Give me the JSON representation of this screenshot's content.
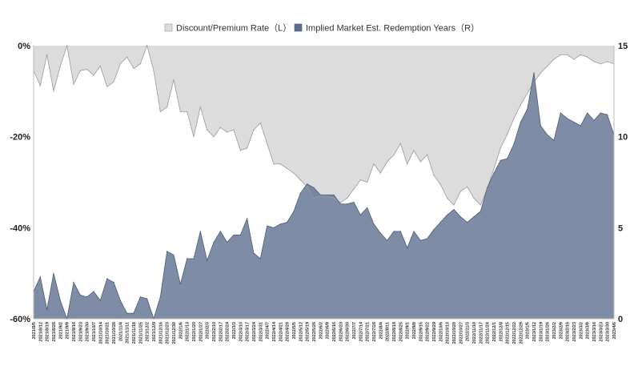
{
  "chart_data": {
    "type": "area",
    "title": "",
    "xlabel": "",
    "ylabel_left": "",
    "ylabel_right": "",
    "legend": {
      "placement": "top-center",
      "items": [
        {
          "label": "Discount/Premium Rate（L）",
          "color": "#dcdcdc",
          "axis": "left"
        },
        {
          "label": "Implied Market Est. Redemption Years（R）",
          "color": "#5e6f8e",
          "axis": "right"
        }
      ]
    },
    "y_left": {
      "ticks": [
        "0%",
        "-20%",
        "-40%",
        "-60%"
      ],
      "tick_values": [
        0,
        -20,
        -40,
        -60
      ],
      "lim": [
        -60,
        0
      ]
    },
    "y_right": {
      "ticks": [
        "15",
        "10",
        "5",
        "0"
      ],
      "tick_values": [
        15,
        10,
        5,
        0
      ],
      "lim": [
        0,
        15
      ]
    },
    "grid": false,
    "x_tick_labels": [
      "2021/8/5",
      "2021/8/12",
      "2021/8/19",
      "2021/8/26",
      "2021/9/2",
      "2021/9/9",
      "2021/9/16",
      "2021/9/23",
      "2021/9/30",
      "2021/10/7",
      "2021/10/14",
      "2021/10/21",
      "2021/10/28",
      "2021/11/4",
      "2021/11/11",
      "2021/11/18",
      "2021/11/25",
      "2021/12/2",
      "2021/12/9",
      "2021/12/16",
      "2021/12/23",
      "2021/12/30",
      "2022/1/6",
      "2022/1/13",
      "2022/1/20",
      "2022/1/27",
      "2022/2/3",
      "2022/2/10",
      "2022/2/17",
      "2022/2/24",
      "2022/3/3",
      "2022/3/10",
      "2022/3/17",
      "2022/3/24",
      "2022/3/31",
      "2022/4/7",
      "2022/4/14",
      "2022/4/21",
      "2022/4/28",
      "2022/5/5",
      "2022/5/12",
      "2022/5/19",
      "2022/5/26",
      "2022/6/2",
      "2022/6/9",
      "2022/6/16",
      "2022/6/23",
      "2022/6/30",
      "2022/7/7",
      "2022/7/14",
      "2022/7/21",
      "2022/7/28",
      "2022/8/4",
      "2022/8/11",
      "2022/8/18",
      "2022/8/25",
      "2022/9/1",
      "2022/9/8",
      "2022/9/15",
      "2022/9/22",
      "2022/9/29",
      "2022/10/6",
      "2022/10/13",
      "2022/10/20",
      "2022/10/27",
      "2022/11/3",
      "2022/11/10",
      "2022/11/17",
      "2022/11/24",
      "2022/12/1",
      "2022/12/8",
      "2022/12/15",
      "2022/12/22",
      "2022/12/29",
      "2023/1/5",
      "2023/1/12",
      "2023/1/19",
      "2023/1/26",
      "2023/2/2",
      "2023/2/9",
      "2023/2/16",
      "2023/2/23",
      "2023/3/2",
      "2023/3/9",
      "2023/3/16",
      "2023/3/23",
      "2023/3/30",
      "2023/4/6"
    ],
    "series": [
      {
        "name": "Discount/Premium Rate（L）",
        "axis": "left",
        "values": [
          -5.5,
          -8.8,
          -2,
          -10,
          -4.5,
          0,
          -8.5,
          -5.5,
          -5.2,
          -6.5,
          -4.5,
          -9,
          -8,
          -4,
          -2.5,
          -5,
          -4,
          0,
          -5.5,
          -14.5,
          -13.5,
          -7.5,
          -14.5,
          -14.5,
          -20,
          -13.5,
          -18.5,
          -20,
          -18,
          -19,
          -18.5,
          -23,
          -22.5,
          -18.5,
          -17,
          -21.5,
          -26,
          -26,
          -27,
          -28,
          -29.5,
          -31,
          -33.5,
          -33,
          -33,
          -33.5,
          -34.5,
          -33.5,
          -31.5,
          -29.5,
          -30,
          -26,
          -28,
          -25.5,
          -24,
          -21.5,
          -26,
          -23,
          -25.5,
          -24,
          -28.5,
          -30.5,
          -33.5,
          -35,
          -32,
          -31,
          -33.5,
          -35,
          -31.5,
          -27,
          -22.5,
          -19.5,
          -16,
          -13,
          -10.5,
          -8,
          -6,
          -4.5,
          -3,
          -2,
          -2,
          -3,
          -2,
          -2.5,
          -3.5,
          -4,
          -3.5,
          -4
        ]
      },
      {
        "name": "Implied Market Est. Redemption Years（R）",
        "axis": "right",
        "values": [
          1.5,
          2.3,
          0.5,
          2.5,
          1,
          0,
          2,
          1.3,
          1.2,
          1.5,
          1,
          2.2,
          2,
          1,
          0.3,
          0.3,
          1.2,
          1.1,
          0,
          1.2,
          3.7,
          3.5,
          1.9,
          3.3,
          3.3,
          4.8,
          3.2,
          4.2,
          4.8,
          4.2,
          4.6,
          4.6,
          5.5,
          3.6,
          3.3,
          5.1,
          5,
          5.2,
          5.3,
          5.9,
          6.9,
          7.4,
          7.2,
          6.8,
          6.8,
          6.8,
          6.3,
          6.3,
          6.4,
          5.7,
          6.1,
          5.2,
          4.7,
          4.3,
          4.8,
          4.8,
          3.9,
          4.8,
          4.3,
          4.4,
          4.9,
          5.3,
          5.7,
          6,
          5.6,
          5.3,
          5.6,
          5.9,
          7.2,
          8,
          8.7,
          8.8,
          9.6,
          10.8,
          11.5,
          13.5,
          10.6,
          10.1,
          9.8,
          11.3,
          11,
          10.8,
          10.6,
          11.3,
          10.9,
          11.3,
          11.2,
          10.1
        ]
      }
    ]
  }
}
